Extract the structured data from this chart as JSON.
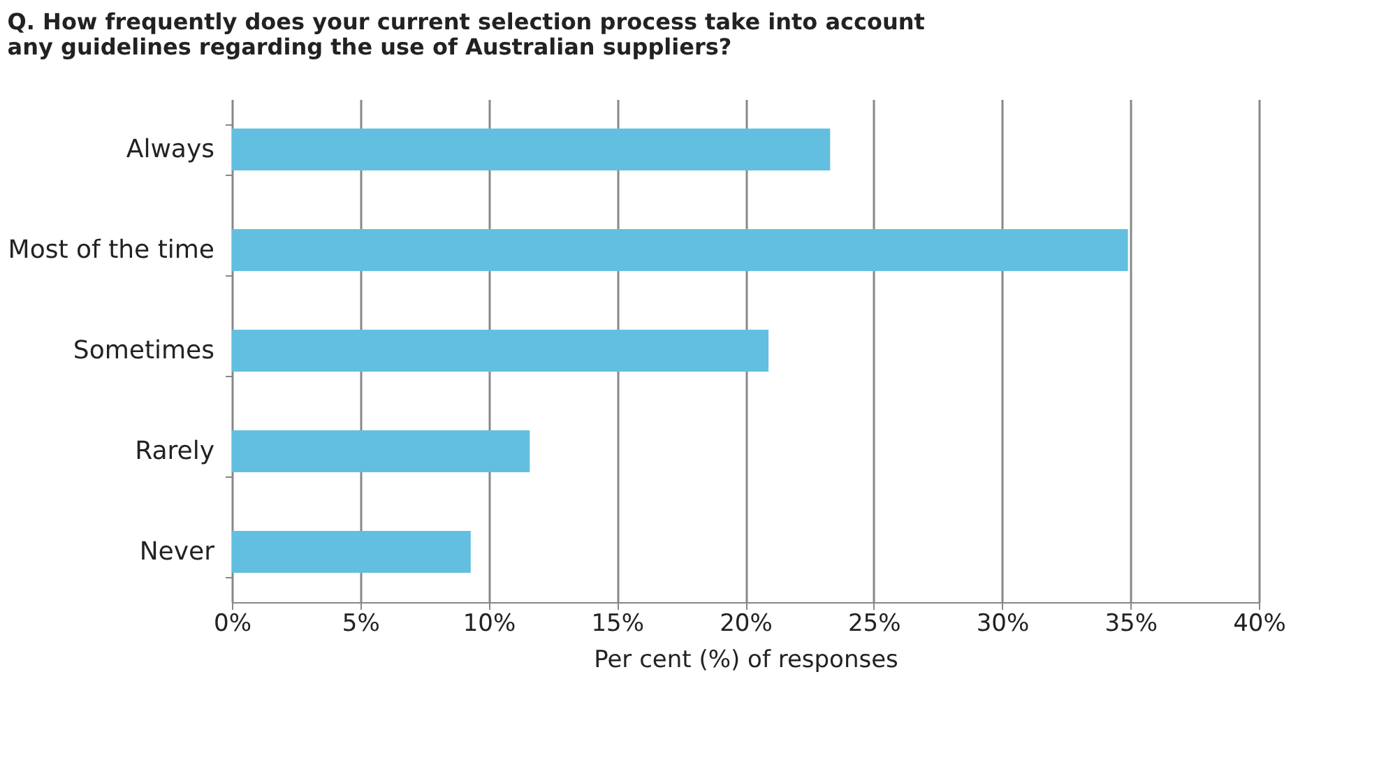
{
  "chart_data": {
    "type": "bar",
    "orientation": "horizontal",
    "title": [
      "Q. How frequently does your current selection process take into account",
      "any guidelines regarding the use of Australian suppliers?"
    ],
    "categories": [
      "Always",
      "Most of the time",
      "Sometimes",
      "Rarely",
      "Never"
    ],
    "values": [
      23.3,
      34.9,
      20.9,
      11.6,
      9.3
    ],
    "color": "#62bfe0",
    "xlabel": "Per cent (%) of responses",
    "xlim": [
      0,
      40
    ],
    "xticks": [
      {
        "value": 0,
        "label": "0%"
      },
      {
        "value": 5,
        "label": "5%"
      },
      {
        "value": 10,
        "label": "10%"
      },
      {
        "value": 15,
        "label": "15%"
      },
      {
        "value": 20,
        "label": "20%"
      },
      {
        "value": 25,
        "label": "25%"
      },
      {
        "value": 30,
        "label": "30%"
      },
      {
        "value": 35,
        "label": "35%"
      },
      {
        "value": 40,
        "label": "40%"
      }
    ],
    "grid": "x"
  }
}
